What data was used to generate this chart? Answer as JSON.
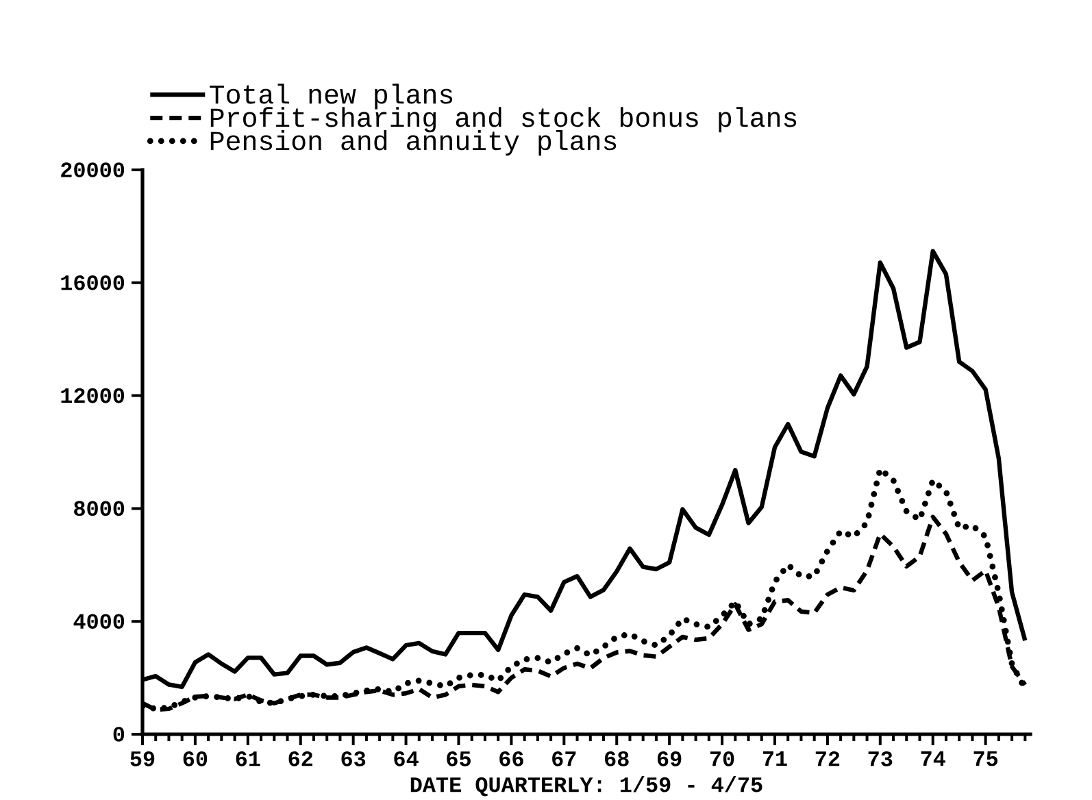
{
  "chart_data": {
    "type": "line",
    "xlabel": "DATE QUARTERLY: 1/59 - 4/75",
    "x": [
      59,
      59.25,
      59.5,
      59.75,
      60,
      60.25,
      60.5,
      60.75,
      61,
      61.25,
      61.5,
      61.75,
      62,
      62.25,
      62.5,
      62.75,
      63,
      63.25,
      63.5,
      63.75,
      64,
      64.25,
      64.5,
      64.75,
      65,
      65.25,
      65.5,
      65.75,
      66,
      66.25,
      66.5,
      66.75,
      67,
      67.25,
      67.5,
      67.75,
      68,
      68.25,
      68.5,
      68.75,
      69,
      69.25,
      69.5,
      69.75,
      70,
      70.25,
      70.5,
      70.75,
      71,
      71.25,
      71.5,
      71.75,
      72,
      72.25,
      72.5,
      72.75,
      73,
      73.25,
      73.5,
      73.75,
      74,
      74.25,
      74.5,
      74.75,
      75,
      75.25,
      75.5,
      75.75
    ],
    "xlim": [
      59,
      75.85
    ],
    "xticks": [
      59,
      60,
      61,
      62,
      63,
      64,
      65,
      66,
      67,
      68,
      69,
      70,
      71,
      72,
      73,
      74,
      75
    ],
    "ylim": [
      0,
      20000
    ],
    "yticks": [
      0,
      4000,
      8000,
      12000,
      16000,
      20000
    ],
    "legend": "top left",
    "series": [
      {
        "name": "Total new plans",
        "color": "#000000",
        "line_style": "solid",
        "values": [
          1930,
          2060,
          1760,
          1680,
          2550,
          2830,
          2500,
          2220,
          2710,
          2710,
          2120,
          2170,
          2780,
          2780,
          2470,
          2530,
          2910,
          3070,
          2870,
          2660,
          3150,
          3230,
          2940,
          2830,
          3590,
          3590,
          3590,
          2990,
          4210,
          4950,
          4870,
          4380,
          5390,
          5600,
          4870,
          5110,
          5770,
          6580,
          5930,
          5850,
          6090,
          7970,
          7320,
          7070,
          8130,
          9360,
          7480,
          8050,
          10170,
          10990,
          10010,
          9850,
          11560,
          12710,
          12050,
          13030,
          16710,
          15800,
          13700,
          13900,
          17120,
          16300,
          13200,
          12870,
          12220,
          9770,
          5030,
          3320
        ]
      },
      {
        "name": "Profit-sharing and stock bonus plans",
        "color": "#000000",
        "line_style": "dashed",
        "values": [
          1100,
          870,
          900,
          1100,
          1330,
          1360,
          1300,
          1250,
          1400,
          1200,
          1100,
          1250,
          1400,
          1400,
          1300,
          1300,
          1400,
          1500,
          1550,
          1400,
          1450,
          1600,
          1300,
          1400,
          1700,
          1750,
          1700,
          1500,
          2000,
          2300,
          2250,
          2050,
          2350,
          2500,
          2340,
          2700,
          2900,
          2950,
          2800,
          2750,
          3100,
          3450,
          3350,
          3400,
          3900,
          4600,
          3700,
          3900,
          4700,
          4750,
          4350,
          4300,
          4950,
          5200,
          5100,
          5800,
          7100,
          6650,
          5950,
          6300,
          7700,
          7100,
          6100,
          5450,
          5800,
          4500,
          2400,
          1750
        ]
      },
      {
        "name": "Pension and annuity plans",
        "color": "#000000",
        "line_style": "dotted",
        "values": [
          1000,
          900,
          950,
          1150,
          1300,
          1350,
          1300,
          1250,
          1350,
          1150,
          1100,
          1250,
          1350,
          1400,
          1350,
          1350,
          1450,
          1550,
          1600,
          1500,
          1800,
          1900,
          1800,
          1700,
          2000,
          2100,
          2100,
          1900,
          2400,
          2650,
          2700,
          2550,
          2850,
          3050,
          2800,
          3100,
          3450,
          3550,
          3300,
          3150,
          3500,
          4100,
          3900,
          3800,
          4200,
          4700,
          3900,
          4100,
          5400,
          6000,
          5600,
          5600,
          6500,
          7200,
          7000,
          7500,
          9400,
          9000,
          7900,
          7600,
          9000,
          8600,
          7300,
          7400,
          7000,
          5000,
          2500,
          1600
        ]
      }
    ]
  }
}
